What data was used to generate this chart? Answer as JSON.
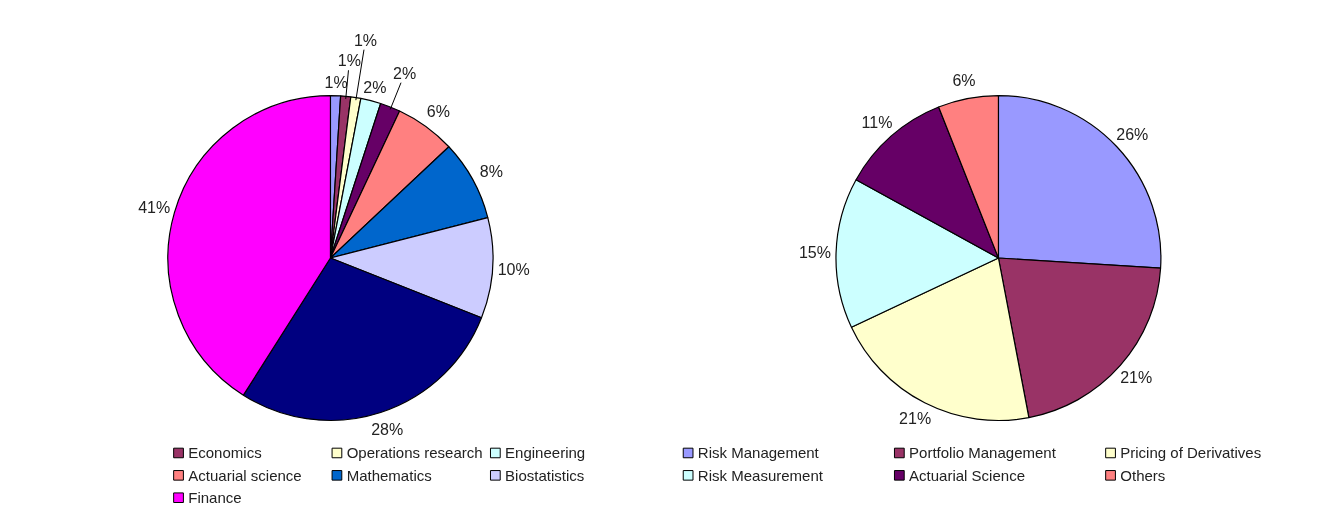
{
  "chart_data": [
    {
      "type": "pie",
      "categories": [
        null,
        "Economics",
        "Operations research",
        "Engineering",
        null,
        "Actuarial science",
        "Mathematics",
        "Biostatistics",
        null,
        "Finance"
      ],
      "values": [
        1,
        1,
        1,
        2,
        2,
        6,
        8,
        10,
        28,
        41
      ],
      "colors": [
        "#9999ff",
        "#993366",
        "#ffffcc",
        "#ccffff",
        "#660066",
        "#ff8080",
        "#0066cc",
        "#ccccff",
        "#000080",
        "#ff00ff"
      ],
      "value_labels": [
        "1%",
        "1%",
        "1%",
        "2%",
        "2%",
        "6%",
        "8%",
        "10%",
        "28%",
        "41%"
      ],
      "legend": "bottom"
    },
    {
      "type": "pie",
      "categories": [
        "Risk Management",
        "Portfolio Management",
        "Pricing of Derivatives",
        "Risk Measurement",
        "Actuarial Science",
        "Others"
      ],
      "values": [
        26,
        21,
        21,
        15,
        11,
        6
      ],
      "colors": [
        "#9999ff",
        "#993366",
        "#ffffcc",
        "#ccffff",
        "#660066",
        "#ff8080"
      ],
      "value_labels": [
        "26%",
        "21%",
        "21%",
        "15%",
        "11%",
        "6%"
      ],
      "legend": "bottom"
    }
  ]
}
